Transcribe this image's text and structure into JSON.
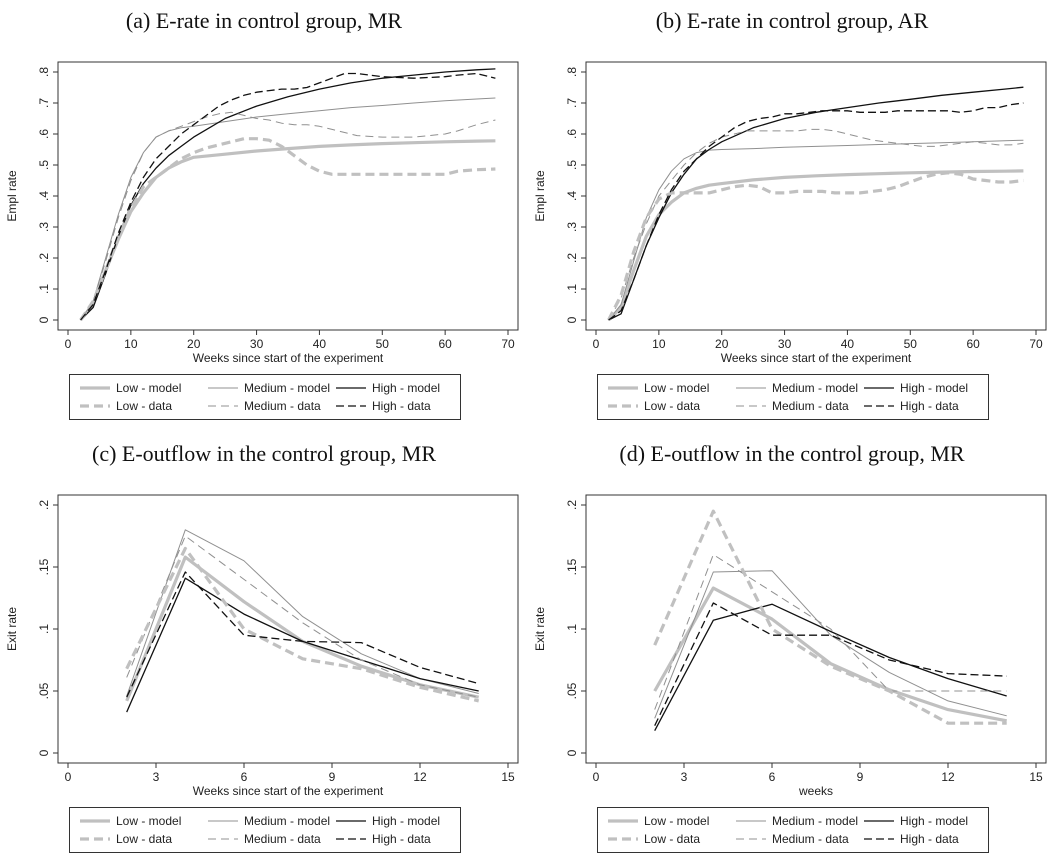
{
  "colors": {
    "low": "#c0c0c0",
    "medium": "#909090",
    "high": "#111111",
    "axis": "#333333"
  },
  "legend_entries": [
    {
      "key": "low_model",
      "label": "Low - model"
    },
    {
      "key": "medium_model",
      "label": "Medium - model"
    },
    {
      "key": "high_model",
      "label": "High - model"
    },
    {
      "key": "low_data",
      "label": "Low - data"
    },
    {
      "key": "medium_data",
      "label": "Medium - data"
    },
    {
      "key": "high_data",
      "label": "High - data"
    }
  ],
  "chart_data": [
    {
      "type": "line",
      "title": "(a) E-rate in control group, MR",
      "xlabel": "Weeks since start of the experiment",
      "ylabel": "Empl rate",
      "xlim": [
        0,
        70
      ],
      "ylim": [
        0,
        0.8
      ],
      "xticks": [
        "0",
        "10",
        "20",
        "30",
        "40",
        "50",
        "60",
        "70"
      ],
      "yticks": [
        "0",
        ".1",
        ".2",
        ".3",
        ".4",
        ".5",
        ".6",
        ".7",
        ".8"
      ],
      "series": [
        {
          "key": "low_model",
          "name": "Low - model",
          "x": [
            2,
            4,
            6,
            8,
            10,
            12,
            14,
            16,
            18,
            20,
            25,
            30,
            35,
            40,
            45,
            50,
            55,
            60,
            65,
            68
          ],
          "y": [
            0.0,
            0.05,
            0.16,
            0.26,
            0.35,
            0.41,
            0.46,
            0.49,
            0.51,
            0.525,
            0.535,
            0.545,
            0.553,
            0.56,
            0.565,
            0.569,
            0.572,
            0.575,
            0.577,
            0.578
          ]
        },
        {
          "key": "medium_model",
          "name": "Medium - model",
          "x": [
            2,
            4,
            6,
            8,
            10,
            12,
            14,
            16,
            18,
            20,
            25,
            30,
            35,
            40,
            45,
            50,
            55,
            60,
            65,
            68
          ],
          "y": [
            0.0,
            0.06,
            0.2,
            0.34,
            0.46,
            0.54,
            0.59,
            0.61,
            0.62,
            0.625,
            0.64,
            0.655,
            0.665,
            0.675,
            0.685,
            0.692,
            0.7,
            0.707,
            0.713,
            0.716
          ]
        },
        {
          "key": "high_model",
          "name": "High - model",
          "x": [
            2,
            4,
            6,
            8,
            10,
            12,
            14,
            16,
            18,
            20,
            25,
            30,
            35,
            40,
            45,
            50,
            55,
            60,
            65,
            68
          ],
          "y": [
            0.0,
            0.04,
            0.15,
            0.27,
            0.37,
            0.44,
            0.49,
            0.53,
            0.56,
            0.59,
            0.65,
            0.69,
            0.72,
            0.745,
            0.765,
            0.78,
            0.79,
            0.8,
            0.807,
            0.81
          ]
        },
        {
          "key": "low_data",
          "name": "Low - data",
          "x": [
            2,
            4,
            6,
            8,
            10,
            12,
            14,
            16,
            18,
            20,
            22,
            24,
            26,
            28,
            30,
            32,
            34,
            36,
            38,
            40,
            42,
            44,
            46,
            50,
            55,
            60,
            62,
            65,
            68
          ],
          "y": [
            0.0,
            0.06,
            0.16,
            0.27,
            0.36,
            0.43,
            0.46,
            0.49,
            0.52,
            0.54,
            0.555,
            0.565,
            0.575,
            0.585,
            0.585,
            0.58,
            0.56,
            0.53,
            0.5,
            0.48,
            0.47,
            0.47,
            0.47,
            0.47,
            0.47,
            0.47,
            0.48,
            0.485,
            0.487
          ]
        },
        {
          "key": "medium_data",
          "name": "Medium - data",
          "x": [
            2,
            4,
            6,
            8,
            10,
            12,
            14,
            16,
            18,
            20,
            22,
            24,
            26,
            28,
            30,
            32,
            34,
            36,
            38,
            40,
            42,
            44,
            46,
            50,
            55,
            60,
            62,
            65,
            68
          ],
          "y": [
            0.0,
            0.06,
            0.19,
            0.33,
            0.45,
            0.54,
            0.59,
            0.61,
            0.625,
            0.64,
            0.655,
            0.665,
            0.67,
            0.66,
            0.65,
            0.645,
            0.635,
            0.63,
            0.63,
            0.625,
            0.615,
            0.605,
            0.595,
            0.59,
            0.59,
            0.6,
            0.61,
            0.63,
            0.645
          ]
        },
        {
          "key": "high_data",
          "name": "High - data",
          "x": [
            2,
            4,
            6,
            8,
            10,
            12,
            14,
            16,
            18,
            20,
            22,
            24,
            26,
            28,
            30,
            32,
            34,
            36,
            38,
            40,
            42,
            44,
            46,
            50,
            55,
            60,
            62,
            65,
            68
          ],
          "y": [
            0.0,
            0.05,
            0.16,
            0.28,
            0.38,
            0.46,
            0.52,
            0.56,
            0.6,
            0.63,
            0.66,
            0.69,
            0.71,
            0.725,
            0.735,
            0.74,
            0.745,
            0.745,
            0.75,
            0.765,
            0.78,
            0.795,
            0.795,
            0.785,
            0.78,
            0.785,
            0.79,
            0.795,
            0.78
          ]
        }
      ]
    },
    {
      "type": "line",
      "title": "(b) E-rate in control group, AR",
      "xlabel": "Weeks since start of the experiment",
      "ylabel": "Empl rate",
      "xlim": [
        0,
        70
      ],
      "ylim": [
        0,
        0.8
      ],
      "xticks": [
        "0",
        "10",
        "20",
        "30",
        "40",
        "50",
        "60",
        "70"
      ],
      "yticks": [
        "0",
        ".1",
        ".2",
        ".3",
        ".4",
        ".5",
        ".6",
        ".7",
        ".8"
      ],
      "series": [
        {
          "key": "low_model",
          "name": "Low - model",
          "x": [
            2,
            4,
            6,
            8,
            10,
            12,
            14,
            16,
            18,
            20,
            25,
            30,
            35,
            40,
            45,
            50,
            55,
            60,
            65,
            68
          ],
          "y": [
            0.0,
            0.04,
            0.16,
            0.27,
            0.34,
            0.38,
            0.41,
            0.425,
            0.435,
            0.44,
            0.452,
            0.46,
            0.465,
            0.469,
            0.472,
            0.475,
            0.477,
            0.479,
            0.48,
            0.481
          ]
        },
        {
          "key": "medium_model",
          "name": "Medium - model",
          "x": [
            2,
            4,
            6,
            8,
            10,
            12,
            14,
            16,
            18,
            20,
            25,
            30,
            35,
            40,
            45,
            50,
            55,
            60,
            65,
            68
          ],
          "y": [
            0.0,
            0.05,
            0.19,
            0.33,
            0.42,
            0.48,
            0.52,
            0.54,
            0.548,
            0.55,
            0.553,
            0.557,
            0.56,
            0.563,
            0.566,
            0.569,
            0.572,
            0.575,
            0.578,
            0.58
          ]
        },
        {
          "key": "high_model",
          "name": "High - model",
          "x": [
            2,
            4,
            6,
            8,
            10,
            12,
            14,
            16,
            18,
            20,
            25,
            30,
            35,
            40,
            45,
            50,
            55,
            60,
            65,
            68
          ],
          "y": [
            0.0,
            0.02,
            0.13,
            0.24,
            0.33,
            0.41,
            0.47,
            0.52,
            0.55,
            0.575,
            0.62,
            0.65,
            0.67,
            0.685,
            0.7,
            0.712,
            0.725,
            0.735,
            0.745,
            0.751
          ]
        },
        {
          "key": "low_data",
          "name": "Low - data",
          "x": [
            2,
            4,
            6,
            8,
            10,
            12,
            14,
            16,
            18,
            20,
            22,
            24,
            26,
            28,
            30,
            32,
            34,
            36,
            38,
            40,
            42,
            44,
            46,
            48,
            50,
            52,
            54,
            56,
            58,
            60,
            62,
            64,
            66,
            68
          ],
          "y": [
            0.0,
            0.08,
            0.22,
            0.33,
            0.39,
            0.41,
            0.41,
            0.41,
            0.41,
            0.42,
            0.43,
            0.435,
            0.43,
            0.41,
            0.41,
            0.415,
            0.415,
            0.415,
            0.41,
            0.41,
            0.41,
            0.415,
            0.42,
            0.43,
            0.445,
            0.46,
            0.47,
            0.475,
            0.47,
            0.455,
            0.45,
            0.445,
            0.445,
            0.45
          ]
        },
        {
          "key": "medium_data",
          "name": "Medium - data",
          "x": [
            2,
            4,
            6,
            8,
            10,
            12,
            14,
            16,
            18,
            20,
            22,
            24,
            26,
            28,
            30,
            32,
            34,
            36,
            38,
            40,
            42,
            44,
            46,
            48,
            50,
            52,
            54,
            56,
            58,
            60,
            62,
            64,
            66,
            68
          ],
          "y": [
            0.0,
            0.07,
            0.2,
            0.31,
            0.4,
            0.45,
            0.5,
            0.54,
            0.57,
            0.59,
            0.6,
            0.61,
            0.61,
            0.61,
            0.61,
            0.61,
            0.615,
            0.615,
            0.61,
            0.6,
            0.59,
            0.58,
            0.575,
            0.57,
            0.565,
            0.56,
            0.56,
            0.565,
            0.57,
            0.575,
            0.57,
            0.565,
            0.565,
            0.57
          ]
        },
        {
          "key": "high_data",
          "name": "High - data",
          "x": [
            2,
            4,
            6,
            8,
            10,
            12,
            14,
            16,
            18,
            20,
            22,
            24,
            26,
            28,
            30,
            32,
            34,
            36,
            38,
            40,
            42,
            44,
            46,
            48,
            50,
            52,
            54,
            56,
            58,
            60,
            62,
            64,
            66,
            68
          ],
          "y": [
            0.0,
            0.03,
            0.13,
            0.24,
            0.34,
            0.42,
            0.48,
            0.52,
            0.56,
            0.59,
            0.62,
            0.64,
            0.65,
            0.655,
            0.665,
            0.665,
            0.67,
            0.675,
            0.675,
            0.675,
            0.67,
            0.67,
            0.67,
            0.675,
            0.675,
            0.675,
            0.675,
            0.675,
            0.67,
            0.675,
            0.685,
            0.685,
            0.695,
            0.7
          ]
        }
      ]
    },
    {
      "type": "line",
      "title": "(c) E-outflow in the control group, MR",
      "xlabel": "Weeks since start of the experiment",
      "ylabel": "Exit rate",
      "xlim": [
        0,
        15
      ],
      "ylim": [
        0,
        0.2
      ],
      "xticks": [
        "0",
        "3",
        "6",
        "9",
        "12",
        "15"
      ],
      "yticks": [
        "0",
        ".05",
        ".1",
        ".15",
        ".2"
      ],
      "series": [
        {
          "key": "low_model",
          "name": "Low - model",
          "x": [
            2,
            4,
            6,
            8,
            10,
            12,
            14
          ],
          "y": [
            0.042,
            0.158,
            0.122,
            0.09,
            0.07,
            0.055,
            0.045
          ]
        },
        {
          "key": "medium_model",
          "name": "Medium - model",
          "x": [
            2,
            4,
            6,
            8,
            10,
            12,
            14
          ],
          "y": [
            0.046,
            0.18,
            0.155,
            0.11,
            0.08,
            0.06,
            0.048
          ]
        },
        {
          "key": "high_model",
          "name": "High - model",
          "x": [
            2,
            4,
            6,
            8,
            10,
            12,
            14
          ],
          "y": [
            0.033,
            0.141,
            0.112,
            0.09,
            0.075,
            0.06,
            0.05
          ]
        },
        {
          "key": "low_data",
          "name": "Low - data",
          "x": [
            2,
            4,
            6,
            8,
            10,
            12,
            14
          ],
          "y": [
            0.068,
            0.165,
            0.1,
            0.076,
            0.068,
            0.053,
            0.042
          ]
        },
        {
          "key": "medium_data",
          "name": "Medium - data",
          "x": [
            2,
            4,
            6,
            8,
            10,
            12,
            14
          ],
          "y": [
            0.061,
            0.175,
            0.14,
            0.105,
            0.075,
            0.055,
            0.045
          ]
        },
        {
          "key": "high_data",
          "name": "High - data",
          "x": [
            2,
            4,
            6,
            8,
            10,
            12,
            14
          ],
          "y": [
            0.045,
            0.146,
            0.095,
            0.09,
            0.089,
            0.069,
            0.056
          ]
        }
      ]
    },
    {
      "type": "line",
      "title": "(d) E-outflow in the control group, MR",
      "xlabel": "weeks",
      "ylabel": "Exit rate",
      "xlim": [
        0,
        15
      ],
      "ylim": [
        0,
        0.2
      ],
      "xticks": [
        "0",
        "3",
        "6",
        "9",
        "12",
        "15"
      ],
      "yticks": [
        "0",
        ".05",
        ".1",
        ".15",
        ".2"
      ],
      "series": [
        {
          "key": "low_model",
          "name": "Low - model",
          "x": [
            2,
            4,
            6,
            8,
            10,
            12,
            14
          ],
          "y": [
            0.05,
            0.133,
            0.108,
            0.072,
            0.051,
            0.035,
            0.026
          ]
        },
        {
          "key": "medium_model",
          "name": "Medium - model",
          "x": [
            2,
            4,
            6,
            8,
            10,
            12,
            14
          ],
          "y": [
            0.028,
            0.146,
            0.147,
            0.095,
            0.065,
            0.042,
            0.03
          ]
        },
        {
          "key": "high_model",
          "name": "High - model",
          "x": [
            2,
            4,
            6,
            8,
            10,
            12,
            14
          ],
          "y": [
            0.018,
            0.107,
            0.12,
            0.098,
            0.077,
            0.06,
            0.046
          ]
        },
        {
          "key": "low_data",
          "name": "Low - data",
          "x": [
            2,
            4,
            6,
            8,
            10,
            12,
            14
          ],
          "y": [
            0.087,
            0.195,
            0.1,
            0.07,
            0.05,
            0.024,
            0.024
          ]
        },
        {
          "key": "medium_data",
          "name": "Medium - data",
          "x": [
            2,
            4,
            6,
            8,
            10,
            12,
            14
          ],
          "y": [
            0.035,
            0.16,
            0.13,
            0.1,
            0.05,
            0.05,
            0.05
          ]
        },
        {
          "key": "high_data",
          "name": "High - data",
          "x": [
            2,
            4,
            6,
            8,
            10,
            12,
            14
          ],
          "y": [
            0.022,
            0.121,
            0.095,
            0.095,
            0.075,
            0.064,
            0.062
          ]
        }
      ]
    }
  ]
}
